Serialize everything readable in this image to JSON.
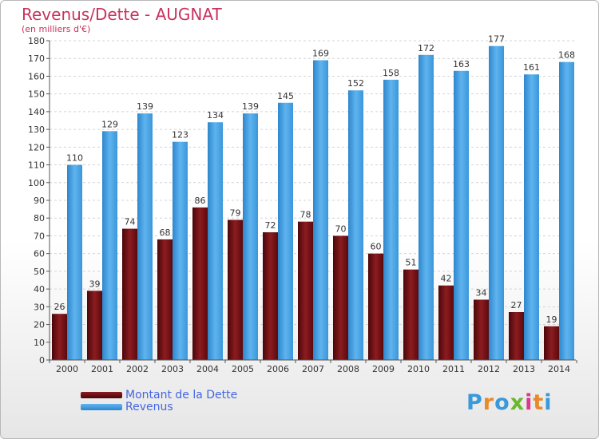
{
  "title": "Revenus/Dette - AUGNAT",
  "subtitle": "(en milliers d'€)",
  "logo": {
    "text": "Proxiti",
    "colors": [
      "#3a9ad9",
      "#e8892a",
      "#3a9ad9",
      "#6ab82e",
      "#d93a8a",
      "#e8892a",
      "#3a9ad9"
    ]
  },
  "colors": {
    "dette": "#6e0f12",
    "revenus": "#3d9de0",
    "title": "#c8325e",
    "legend_text": "#4466e0"
  },
  "chart_data": {
    "type": "bar",
    "title": "Revenus/Dette - AUGNAT",
    "ylabel": "(en milliers d'€)",
    "xlabel": "",
    "ylim": [
      0,
      180
    ],
    "yticks": [
      0,
      10,
      20,
      30,
      40,
      50,
      60,
      70,
      80,
      90,
      100,
      110,
      120,
      130,
      140,
      150,
      160,
      170,
      180
    ],
    "grid": true,
    "legend": "bottom-left",
    "categories": [
      "2000",
      "2001",
      "2002",
      "2003",
      "2004",
      "2005",
      "2006",
      "2007",
      "2008",
      "2009",
      "2010",
      "2011",
      "2012",
      "2013",
      "2014"
    ],
    "series": [
      {
        "name": "Montant de la Dette",
        "values": [
          26,
          39,
          74,
          68,
          86,
          79,
          72,
          78,
          70,
          60,
          51,
          42,
          34,
          27,
          19
        ]
      },
      {
        "name": "Revenus",
        "values": [
          110,
          129,
          139,
          123,
          134,
          139,
          145,
          169,
          152,
          158,
          172,
          163,
          177,
          161,
          168
        ]
      }
    ]
  }
}
